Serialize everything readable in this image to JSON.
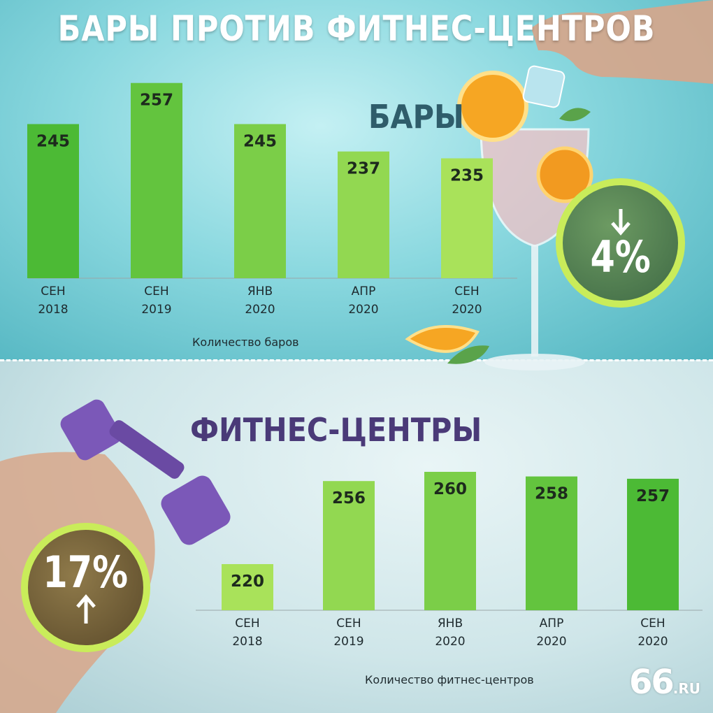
{
  "title": "БАРЫ ПРОТИВ ФИТНЕС-ЦЕНТРОВ",
  "logo": {
    "number": "66",
    "domain": ".RU"
  },
  "bars": {
    "section_title": "БАРЫ",
    "caption": "Количество баров",
    "badge": {
      "percent": "4%",
      "direction": "down",
      "arrow_icon": "arrow-down-icon"
    }
  },
  "fitness": {
    "section_title": "ФИТНЕС-ЦЕНТРЫ",
    "caption": "Количество фитнес-центров",
    "badge": {
      "percent": "17%",
      "direction": "up",
      "arrow_icon": "arrow-up-icon"
    }
  },
  "colors": {
    "bar_dark": "#4cba35",
    "bar_light": "#a9e25a",
    "badge_ring": "#c9ec5a",
    "bars_title": "#2f5d6b",
    "fitness_title": "#4a3a78"
  },
  "chart_data": [
    {
      "type": "bar",
      "title": "БАРЫ",
      "xlabel": "Количество баров",
      "categories": [
        [
          "СЕН",
          "2018"
        ],
        [
          "СЕН",
          "2019"
        ],
        [
          "ЯНВ",
          "2020"
        ],
        [
          "АПР",
          "2020"
        ],
        [
          "СЕН",
          "2020"
        ]
      ],
      "values": [
        245,
        257,
        245,
        237,
        235
      ],
      "labels": [
        "245",
        "257",
        "245",
        "237",
        "235"
      ]
    },
    {
      "type": "bar",
      "title": "ФИТНЕС-ЦЕНТРЫ",
      "xlabel": "Количество фитнес-центров",
      "categories": [
        [
          "СЕН",
          "2018"
        ],
        [
          "СЕН",
          "2019"
        ],
        [
          "ЯНВ",
          "2020"
        ],
        [
          "АПР",
          "2020"
        ],
        [
          "СЕН",
          "2020"
        ]
      ],
      "values": [
        220,
        256,
        260,
        258,
        257
      ],
      "labels": [
        "220",
        "256",
        "260",
        "258",
        "257"
      ]
    }
  ]
}
